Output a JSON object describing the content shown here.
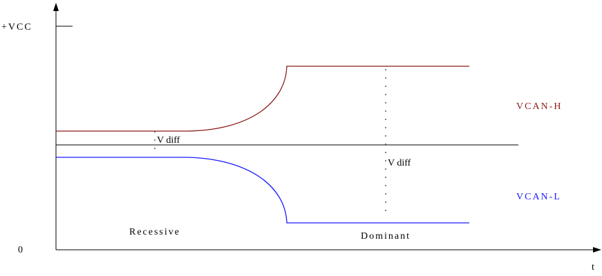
{
  "axis": {
    "y_top_label": "+VCC",
    "origin_label": "0",
    "x_label": "t"
  },
  "signals": [
    {
      "label": "VCAN-H"
    },
    {
      "label": "VCAN-L"
    }
  ],
  "annotations": {
    "vdiff_recessive": "V diff",
    "vdiff_dominant": "V diff",
    "recessive": "Recessive",
    "dominant": "Dominant"
  }
}
